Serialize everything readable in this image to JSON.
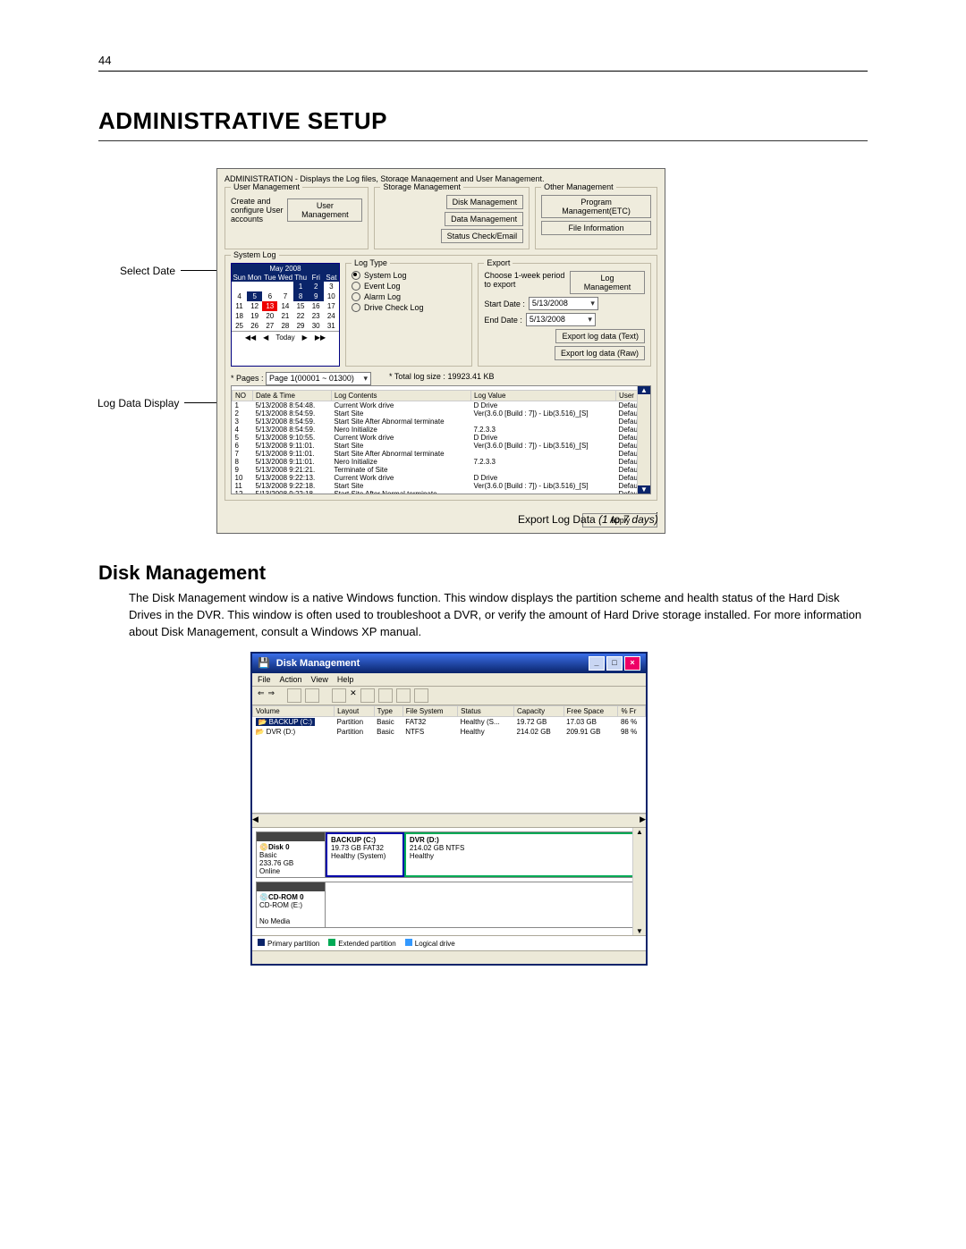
{
  "page_number": "44",
  "heading_main": "ADMINISTRATIVE SETUP",
  "callouts": {
    "select_date": "Select Date",
    "log_data_display": "Log Data Display",
    "export_caption": "Export Log Data",
    "export_range": "(1 to 7 days)"
  },
  "admin": {
    "title": "ADMINISTRATION - Displays the Log files, Storage Management and User Management.",
    "user_mgmt_label": "User Management",
    "user_mgmt_text": "Create and configure User accounts",
    "user_mgmt_btn": "User Management",
    "storage_mgmt_label": "Storage Management",
    "disk_mgmt_btn": "Disk Management",
    "data_mgmt_btn": "Data Management",
    "status_btn": "Status Check/Email",
    "other_mgmt_label": "Other Management",
    "prog_mgmt_btn": "Program Management(ETC)",
    "file_info_btn": "File Information",
    "system_log_label": "System Log",
    "pages_label": "* Pages :",
    "pages_value": "Page 1(00001 ~ 01300)",
    "total_log_label": "* Total log size  :",
    "total_log_value": "19923.41 KB",
    "apply_btn": "Apply",
    "calendar": {
      "month": "May 2008",
      "days_h": [
        "Sun",
        "Mon",
        "Tue",
        "Wed",
        "Thu",
        "Fri",
        "Sat"
      ],
      "today": "Today",
      "selected": "13",
      "dark_days": [
        "1",
        "2",
        "5",
        "8",
        "9"
      ],
      "rows": [
        [
          "",
          "",
          "",
          "",
          "1",
          "2",
          "3"
        ],
        [
          "4",
          "5",
          "6",
          "7",
          "8",
          "9",
          "10"
        ],
        [
          "11",
          "12",
          "13",
          "14",
          "15",
          "16",
          "17"
        ],
        [
          "18",
          "19",
          "20",
          "21",
          "22",
          "23",
          "24"
        ],
        [
          "25",
          "26",
          "27",
          "28",
          "29",
          "30",
          "31"
        ]
      ]
    },
    "log_type": {
      "label": "Log Type",
      "opts": [
        "System Log",
        "Event Log",
        "Alarm Log",
        "Drive Check Log"
      ],
      "selected": 0
    },
    "export": {
      "label": "Export",
      "hint": "Choose 1-week period to export",
      "start_label": "Start Date :",
      "end_label": "End Date :",
      "start_val": "5/13/2008",
      "end_val": "5/13/2008",
      "btn_mgmt": "Log Management",
      "btn_text": "Export log data (Text)",
      "btn_raw": "Export log data (Raw)"
    },
    "table": {
      "headers": [
        "NO",
        "Date & Time",
        "Log Contents",
        "Log Value",
        "User"
      ],
      "rows": [
        [
          "1",
          "5/13/2008 8:54:48.",
          "Current Work drive",
          "D Drive",
          "Default"
        ],
        [
          "2",
          "5/13/2008 8:54:59.",
          "Start Site",
          "Ver(3.6.0 [Build : 7]) - Lib(3.516)_[S]",
          "Default"
        ],
        [
          "3",
          "5/13/2008 8:54:59.",
          "Start Site After Abnormal terminate",
          "",
          "Default"
        ],
        [
          "4",
          "5/13/2008 8:54:59.",
          "Nero Initialize",
          "7.2.3.3",
          "Default"
        ],
        [
          "5",
          "5/13/2008 9:10:55.",
          "Current Work drive",
          "D Drive",
          "Default"
        ],
        [
          "6",
          "5/13/2008 9:11:01.",
          "Start Site",
          "Ver(3.6.0 [Build : 7]) - Lib(3.516)_[S]",
          "Default"
        ],
        [
          "7",
          "5/13/2008 9:11:01.",
          "Start Site After Abnormal terminate",
          "",
          "Default"
        ],
        [
          "8",
          "5/13/2008 9:11:01.",
          "Nero Initialize",
          "7.2.3.3",
          "Default"
        ],
        [
          "9",
          "5/13/2008 9:21:21.",
          "Terminate of Site",
          "",
          "Default"
        ],
        [
          "10",
          "5/13/2008 9:22:13.",
          "Current Work drive",
          "D Drive",
          "Default"
        ],
        [
          "11",
          "5/13/2008 9:22:18.",
          "Start Site",
          "Ver(3.6.0 [Build : 7]) - Lib(3.516)_[S]",
          "Default"
        ],
        [
          "12",
          "5/13/2008 9:22:18.",
          "Start Site After Normal terminate",
          "",
          "Default"
        ]
      ]
    }
  },
  "disk_section": {
    "heading": "Disk Management",
    "para": "The Disk Management window is a native Windows function. This window displays the partition scheme and health status of the Hard Disk Drives in the DVR. This window is often used to troubleshoot a DVR, or verify the amount of Hard Drive storage installed. For more information about Disk Management, consult a Windows XP manual."
  },
  "dm": {
    "title": "Disk Management",
    "menu": [
      "File",
      "Action",
      "View",
      "Help"
    ],
    "headers": [
      "Volume",
      "Layout",
      "Type",
      "File System",
      "Status",
      "Capacity",
      "Free Space",
      "% Fr"
    ],
    "rows": [
      [
        "BACKUP (C:)",
        "Partition",
        "Basic",
        "FAT32",
        "Healthy (S...",
        "19.72 GB",
        "17.03 GB",
        "86 %"
      ],
      [
        "DVR (D:)",
        "Partition",
        "Basic",
        "NTFS",
        "Healthy",
        "214.02 GB",
        "209.91 GB",
        "98 %"
      ]
    ],
    "disk0": {
      "name": "Disk 0",
      "type": "Basic",
      "size": "233.76 GB",
      "status": "Online"
    },
    "partC": {
      "name": "BACKUP (C:)",
      "size": "19.73 GB FAT32",
      "status": "Healthy (System)"
    },
    "partD": {
      "name": "DVR (D:)",
      "size": "214.02 GB NTFS",
      "status": "Healthy"
    },
    "cdrom": {
      "name": "CD-ROM 0",
      "dev": "CD-ROM (E:)",
      "status": "No Media"
    },
    "legend": {
      "pri": "Primary partition",
      "ext": "Extended partition",
      "log": "Logical drive"
    }
  }
}
